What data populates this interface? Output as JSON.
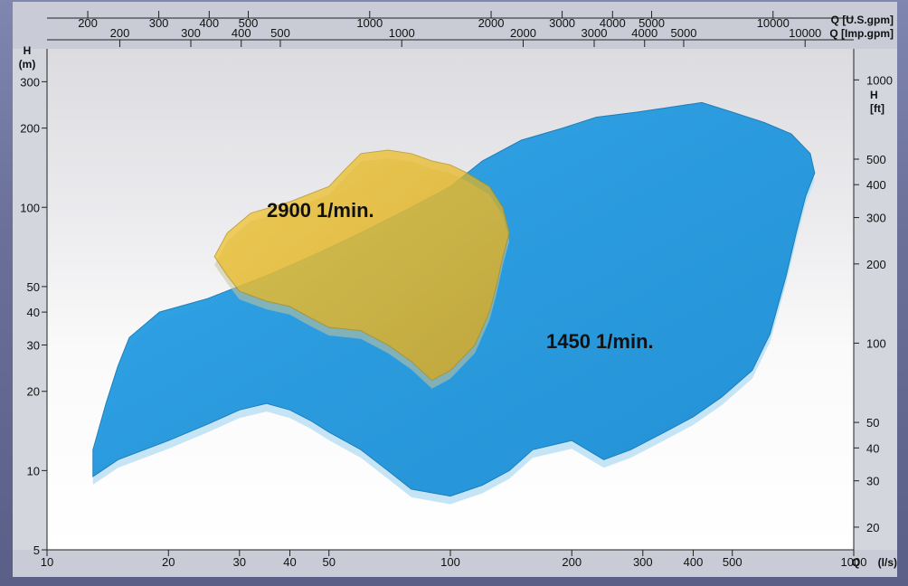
{
  "chart_data": {
    "type": "area",
    "x_bottom": {
      "label": "Q (l/s)",
      "scale": "log",
      "range": [
        10,
        1000
      ],
      "ticks": [
        {
          "value": 10,
          "label": "10"
        },
        {
          "value": 20,
          "label": "20"
        },
        {
          "value": 30,
          "label": "30"
        },
        {
          "value": 40,
          "label": "40"
        },
        {
          "value": 50,
          "label": "50"
        },
        {
          "value": 100,
          "label": "100"
        },
        {
          "value": 200,
          "label": "200"
        },
        {
          "value": 300,
          "label": "300"
        },
        {
          "value": 400,
          "label": "400"
        },
        {
          "value": 500,
          "label": "500"
        },
        {
          "value": 1000,
          "label": "1000"
        }
      ]
    },
    "x_top_us": {
      "label": "Q [U.S.gpm]",
      "ticks": [
        {
          "value": 200,
          "label": "200"
        },
        {
          "value": 300,
          "label": "300"
        },
        {
          "value": 400,
          "label": "400"
        },
        {
          "value": 500,
          "label": "500"
        },
        {
          "value": 1000,
          "label": "1000"
        },
        {
          "value": 2000,
          "label": "2000"
        },
        {
          "value": 3000,
          "label": "3000"
        },
        {
          "value": 4000,
          "label": "4000"
        },
        {
          "value": 5000,
          "label": "5000"
        },
        {
          "value": 10000,
          "label": "10000"
        }
      ]
    },
    "x_top_imp": {
      "label": "Q [Imp.gpm]",
      "ticks": [
        {
          "value": 200,
          "label": "200"
        },
        {
          "value": 300,
          "label": "300"
        },
        {
          "value": 400,
          "label": "400"
        },
        {
          "value": 500,
          "label": "500"
        },
        {
          "value": 1000,
          "label": "1000"
        },
        {
          "value": 2000,
          "label": "2000"
        },
        {
          "value": 3000,
          "label": "3000"
        },
        {
          "value": 4000,
          "label": "4000"
        },
        {
          "value": 5000,
          "label": "5000"
        },
        {
          "value": 10000,
          "label": "10000"
        }
      ]
    },
    "y_left": {
      "label": "H",
      "unit": "(m)",
      "scale": "log",
      "range": [
        5,
        400
      ],
      "ticks": [
        {
          "value": 5,
          "label": "5"
        },
        {
          "value": 10,
          "label": "10"
        },
        {
          "value": 20,
          "label": "20"
        },
        {
          "value": 30,
          "label": "30"
        },
        {
          "value": 40,
          "label": "40"
        },
        {
          "value": 50,
          "label": "50"
        },
        {
          "value": 100,
          "label": "100"
        },
        {
          "value": 200,
          "label": "200"
        },
        {
          "value": 300,
          "label": "300"
        }
      ]
    },
    "y_right": {
      "label": "H",
      "unit": "[ft]",
      "ticks": [
        {
          "value": 20,
          "label": "20"
        },
        {
          "value": 30,
          "label": "30"
        },
        {
          "value": 40,
          "label": "40"
        },
        {
          "value": 50,
          "label": "50"
        },
        {
          "value": 100,
          "label": "100"
        },
        {
          "value": 200,
          "label": "200"
        },
        {
          "value": 300,
          "label": "300"
        },
        {
          "value": 400,
          "label": "400"
        },
        {
          "value": 500,
          "label": "500"
        },
        {
          "value": 1000,
          "label": "1000"
        }
      ]
    },
    "series": [
      {
        "name": "1450 1/min.",
        "color": "#2f9fe0",
        "outline": [
          [
            13,
            9.5
          ],
          [
            15,
            11
          ],
          [
            20,
            13
          ],
          [
            25,
            15
          ],
          [
            30,
            17
          ],
          [
            35,
            18
          ],
          [
            40,
            17
          ],
          [
            45,
            15.5
          ],
          [
            50,
            14
          ],
          [
            60,
            12
          ],
          [
            70,
            10
          ],
          [
            80,
            8.5
          ],
          [
            100,
            8
          ],
          [
            120,
            8.8
          ],
          [
            140,
            10
          ],
          [
            160,
            12
          ],
          [
            200,
            13
          ],
          [
            240,
            11
          ],
          [
            280,
            12
          ],
          [
            340,
            14
          ],
          [
            400,
            16
          ],
          [
            470,
            19
          ],
          [
            560,
            24
          ],
          [
            620,
            33
          ],
          [
            680,
            55
          ],
          [
            720,
            80
          ],
          [
            760,
            110
          ],
          [
            800,
            135
          ],
          [
            780,
            160
          ],
          [
            700,
            190
          ],
          [
            600,
            210
          ],
          [
            500,
            230
          ],
          [
            420,
            250
          ],
          [
            350,
            240
          ],
          [
            290,
            230
          ],
          [
            230,
            220
          ],
          [
            190,
            200
          ],
          [
            150,
            180
          ],
          [
            120,
            150
          ],
          [
            100,
            120
          ],
          [
            80,
            100
          ],
          [
            60,
            80
          ],
          [
            45,
            65
          ],
          [
            35,
            55
          ],
          [
            25,
            45
          ],
          [
            19,
            40
          ],
          [
            16,
            32
          ],
          [
            15,
            25
          ],
          [
            14,
            18
          ],
          [
            13,
            12
          ]
        ]
      },
      {
        "name": "2900 1/min.",
        "color": "#e8b818",
        "outline": [
          [
            26,
            65
          ],
          [
            28,
            55
          ],
          [
            30,
            48
          ],
          [
            35,
            44
          ],
          [
            40,
            42
          ],
          [
            45,
            38
          ],
          [
            50,
            35
          ],
          [
            60,
            34
          ],
          [
            70,
            30
          ],
          [
            80,
            26
          ],
          [
            90,
            22
          ],
          [
            100,
            24
          ],
          [
            115,
            30
          ],
          [
            125,
            40
          ],
          [
            130,
            50
          ],
          [
            135,
            65
          ],
          [
            140,
            80
          ],
          [
            135,
            100
          ],
          [
            125,
            120
          ],
          [
            110,
            135
          ],
          [
            100,
            145
          ],
          [
            90,
            150
          ],
          [
            80,
            160
          ],
          [
            70,
            165
          ],
          [
            60,
            160
          ],
          [
            55,
            140
          ],
          [
            50,
            120
          ],
          [
            40,
            105
          ],
          [
            32,
            95
          ],
          [
            28,
            80
          ]
        ]
      }
    ]
  }
}
